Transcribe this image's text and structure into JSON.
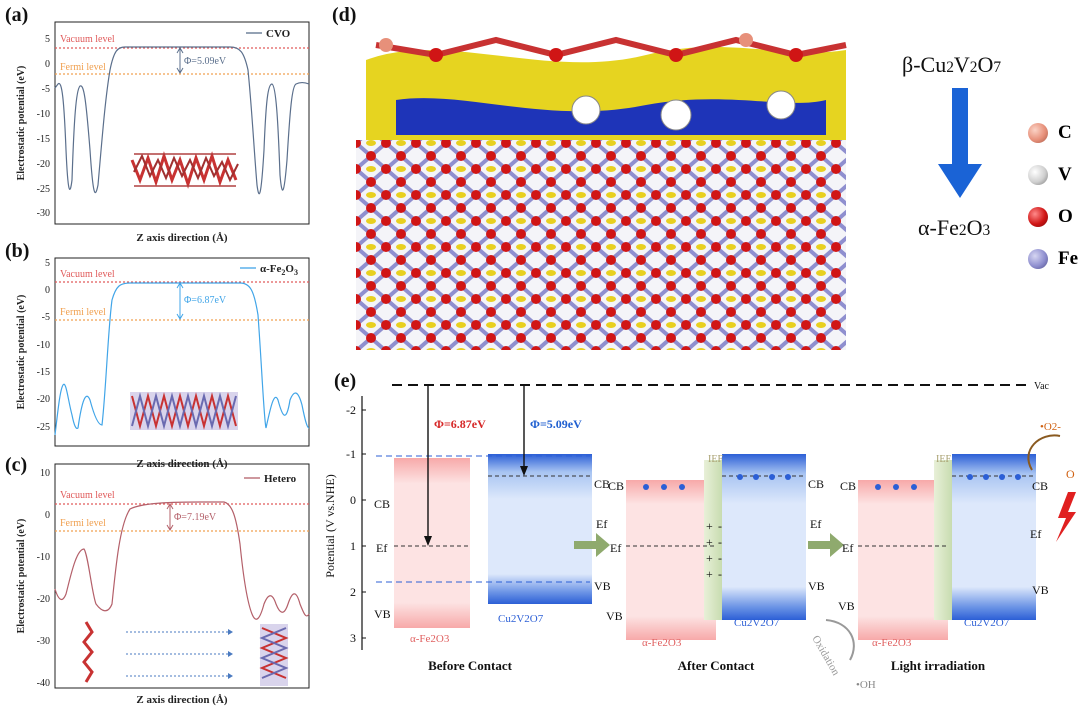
{
  "colors": {
    "cvo_curve": "#5b6f8c",
    "fe_curve": "#41a5e8",
    "hetero_curve": "#b4606a",
    "vacuum_line": "#e05a5a",
    "fermi_line": "#f0a050",
    "phi_red": "#d62828",
    "phi_blue": "#1f5fd0",
    "cb_red": "#f4a0a0",
    "cb_blue": "#3c6fe0",
    "arrow_blue": "#1a63d6"
  },
  "panel_a": {
    "label": "(a)",
    "legend": "CVO",
    "vacuum_label": "Vacuum level",
    "fermi_label": "Fermi level",
    "phi_label": "Φ=5.09eV",
    "ylabel": "Electrostatic potential (eV)",
    "xlabel": "Z axis direction (Å)",
    "yticks": [
      "5",
      "0",
      "-5",
      "-10",
      "-15",
      "-20",
      "-25",
      "-30"
    ]
  },
  "panel_b": {
    "label": "(b)",
    "legend": "α-Fe2O3",
    "vacuum_label": "Vacuum level",
    "fermi_label": "Fermi level",
    "phi_label": "Φ=6.87eV",
    "ylabel": "Electrostatic potential (eV)",
    "xlabel": "Z axis direction (Å)",
    "yticks": [
      "5",
      "0",
      "-5",
      "-10",
      "-15",
      "-20",
      "-25"
    ]
  },
  "panel_c": {
    "label": "(c)",
    "legend": "Hetero",
    "vacuum_label": "Vacuum level",
    "fermi_label": "Fermi level",
    "phi_label": "Φ=7.19eV",
    "ylabel": "Electrostatic potential (eV)",
    "xlabel": "Z axis direction (Å)",
    "yticks": [
      "10",
      "0",
      "-10",
      "-20",
      "-30",
      "-40"
    ]
  },
  "panel_d": {
    "label": "(d)",
    "top_material": "β-Cu2V2O7",
    "bottom_material": "α-Fe2O3",
    "legend": [
      {
        "symbol": "C",
        "color": "#e7907a"
      },
      {
        "symbol": "V",
        "color": "#cfcfcf"
      },
      {
        "symbol": "O",
        "color": "#d01515"
      },
      {
        "symbol": "Fe",
        "color": "#8f8fcf"
      }
    ]
  },
  "panel_e": {
    "label": "(e)",
    "vac": "Vac",
    "ylabel": "Potential (V vs.NHE)",
    "yticks": [
      "-2",
      "-1",
      "0",
      "1",
      "2",
      "3"
    ],
    "phi_fe": "Φ=6.87eV",
    "phi_cvo": "Φ=5.09eV",
    "cb": "CB",
    "vb": "VB",
    "ef": "Ef",
    "iep": "IEF",
    "fe_name": "α-Fe2O3",
    "cvo_name": "Cu2V2O7",
    "stage1": "Before Contact",
    "stage2": "After Contact",
    "stage3": "Light irradiation",
    "oxidation": "Oxidation",
    "oh": "•OH",
    "o2": "•O2-",
    "o_partial": "O"
  },
  "chart_data": [
    {
      "type": "line",
      "title": "",
      "series": [
        {
          "name": "CVO",
          "x": [
            0,
            2,
            4,
            5,
            8,
            12,
            15,
            18,
            20,
            22,
            24,
            26,
            28,
            30,
            32,
            34,
            37,
            40,
            42,
            44,
            46,
            48,
            50
          ],
          "values": [
            -5,
            -6,
            -24,
            -27,
            -20,
            -5,
            2,
            3.4,
            3.4,
            3.4,
            3.4,
            3.4,
            3.4,
            3.4,
            3.4,
            3,
            0,
            -10,
            -25,
            -27,
            -15,
            -5,
            -4
          ]
        }
      ],
      "xlabel": "Z axis direction (Å)",
      "ylabel": "Electrostatic potential (eV)",
      "ylim": [
        -32,
        6
      ],
      "vacuum_level": 3.4,
      "fermi_level": -1.69,
      "work_function_eV": 5.09
    },
    {
      "type": "line",
      "title": "",
      "series": [
        {
          "name": "α-Fe2O3",
          "x": [
            0,
            1,
            3,
            5,
            8,
            10,
            14,
            18,
            22,
            26,
            30,
            34,
            38,
            40,
            43,
            46,
            48,
            50
          ],
          "values": [
            -23,
            -15,
            -14,
            -20,
            -17,
            -22,
            0,
            4,
            4.1,
            4.1,
            4.1,
            4,
            0,
            -22,
            -15,
            -19,
            -14,
            -20
          ]
        }
      ],
      "xlabel": "Z axis direction (Å)",
      "ylabel": "Electrostatic potential (eV)",
      "ylim": [
        -27,
        7
      ],
      "vacuum_level": 4.1,
      "fermi_level": -2.77,
      "work_function_eV": 6.87
    },
    {
      "type": "line",
      "title": "",
      "series": [
        {
          "name": "Hetero",
          "x": [
            0,
            2,
            4,
            5,
            6,
            8,
            10,
            12,
            16,
            20,
            26,
            30,
            34,
            36,
            38,
            40,
            42,
            44,
            46,
            48,
            50
          ],
          "values": [
            -15,
            -18,
            -12,
            -4,
            -12,
            -20,
            -20,
            -10,
            3,
            4.2,
            4.2,
            4.2,
            3,
            -10,
            -20,
            -24,
            -17,
            -15,
            -20,
            -14,
            -22
          ]
        }
      ],
      "xlabel": "Z axis direction (Å)",
      "ylabel": "Electrostatic potential (eV)",
      "ylim": [
        -40,
        10
      ],
      "vacuum_level": 4.2,
      "fermi_level": -2.99,
      "work_function_eV": 7.19
    }
  ]
}
